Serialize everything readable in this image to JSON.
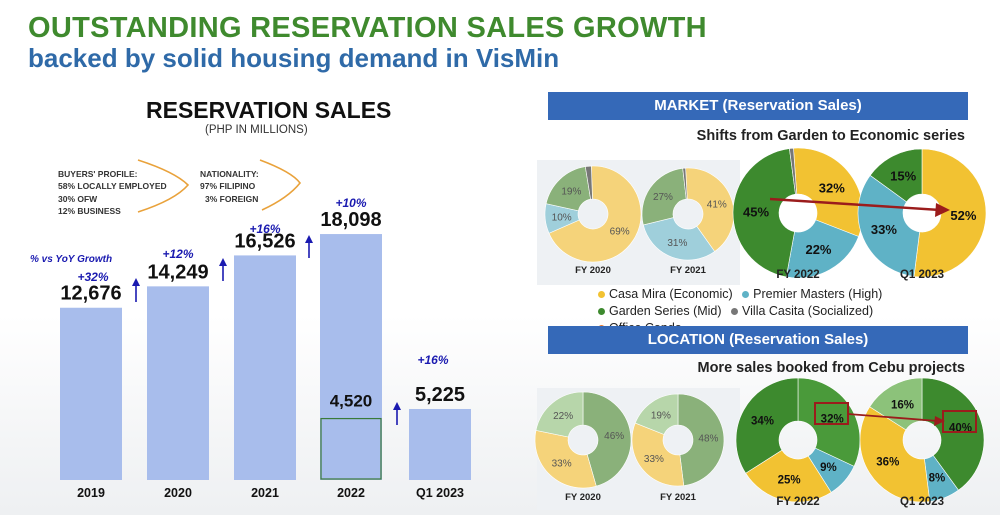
{
  "slide": {
    "title_line1": "OUTSTANDING RESERVATION SALES GROWTH",
    "title_line2": "backed by solid housing demand in VisMin"
  },
  "left_panel": {
    "buyers_profile": [
      "BUYERS' PROFILE:",
      "58%  LOCALLY EMPLOYED",
      "30%  OFW",
      "12%   BUSINESS"
    ],
    "nationality": [
      "NATIONALITY:",
      "97% FILIPINO",
      "3% FOREIGN"
    ],
    "yoy_note": "% vs YoY Growth"
  },
  "market_panel": {
    "header": "MARKET (Reservation Sales)",
    "subtitle": "Shifts from Garden to Economic series",
    "legend": [
      {
        "label": "Casa Mira (Economic)",
        "color": "#f2c232"
      },
      {
        "label": "Premier Masters (High)",
        "color": "#5fb2c6"
      },
      {
        "label": "Garden Series (Mid)",
        "color": "#3d8a2e"
      },
      {
        "label": "Villa Casita (Socialized)",
        "color": "#777777"
      },
      {
        "label": "Office Condo",
        "color": "#ea7a2c"
      }
    ]
  },
  "location_panel": {
    "header": "LOCATION (Reservation Sales)",
    "subtitle": "More sales booked from Cebu projects"
  },
  "chart_data": [
    {
      "type": "bar",
      "title": "RESERVATION SALES",
      "subtitle": "(PHP IN MILLIONS)",
      "categories": [
        "2019",
        "2020",
        "2021",
        "2022",
        "Q1 2023"
      ],
      "values": [
        12676,
        14249,
        16526,
        18098,
        5225
      ],
      "value_labels": [
        "12,676",
        "14,249",
        "16,526",
        "18,098",
        "5,225"
      ],
      "growth_labels": [
        "+32%",
        "+12%",
        "+16%",
        "+10%",
        "+16%"
      ],
      "highlight": {
        "category": "2022",
        "value": 4520,
        "label": "4,520"
      },
      "ylim": [
        0,
        19500
      ],
      "grid": false,
      "colors": {
        "bar": "#a8bdec",
        "highlight_fill": "#a8bdec",
        "highlight_edge": "#3a7a3a",
        "growth": "#1a1ab0"
      }
    },
    {
      "type": "pie",
      "title": "MARKET (Reservation Sales)",
      "charts": [
        {
          "label": "FY 2020",
          "slices": [
            {
              "series": "Casa Mira (Economic)",
              "value": 69,
              "text": "69%"
            },
            {
              "series": "Premier Masters (High)",
              "value": 10,
              "text": "10%"
            },
            {
              "series": "Garden Series (Mid)",
              "value": 19,
              "text": "19%"
            },
            {
              "series": "Villa Casita (Socialized)",
              "value": 2,
              "text": ""
            }
          ]
        },
        {
          "label": "FY 2021",
          "slices": [
            {
              "series": "Casa Mira (Economic)",
              "value": 41,
              "text": "41%"
            },
            {
              "series": "Premier Masters (High)",
              "value": 31,
              "text": "31%"
            },
            {
              "series": "Garden Series (Mid)",
              "value": 27,
              "text": "27%"
            },
            {
              "series": "Villa Casita (Socialized)",
              "value": 1,
              "text": ""
            }
          ]
        },
        {
          "label": "FY 2022",
          "slices": [
            {
              "series": "Casa Mira (Economic)",
              "value": 32,
              "text": "32%"
            },
            {
              "series": "Premier Masters (High)",
              "value": 22,
              "text": "22%"
            },
            {
              "series": "Garden Series (Mid)",
              "value": 45,
              "text": "45%"
            },
            {
              "series": "Villa Casita (Socialized)",
              "value": 1,
              "text": ""
            }
          ]
        },
        {
          "label": "Q1 2023",
          "slices": [
            {
              "series": "Casa Mira (Economic)",
              "value": 52,
              "text": "52%"
            },
            {
              "series": "Premier Masters (High)",
              "value": 33,
              "text": "33%"
            },
            {
              "series": "Garden Series (Mid)",
              "value": 15,
              "text": "15%"
            }
          ]
        }
      ]
    },
    {
      "type": "pie",
      "title": "LOCATION (Reservation Sales)",
      "charts": [
        {
          "label": "FY 2020",
          "slices": [
            {
              "value": 46,
              "text": "46%",
              "color": "#3d8a2e"
            },
            {
              "value": 33,
              "text": "33%",
              "color": "#f2c232"
            },
            {
              "value": 22,
              "text": "22%",
              "color": "#8cc27a"
            }
          ]
        },
        {
          "label": "FY 2021",
          "slices": [
            {
              "value": 48,
              "text": "48%",
              "color": "#3d8a2e"
            },
            {
              "value": 33,
              "text": "33%",
              "color": "#f2c232"
            },
            {
              "value": 19,
              "text": "19%",
              "color": "#8cc27a"
            }
          ]
        },
        {
          "label": "FY 2022",
          "slices": [
            {
              "value": 32,
              "text": "32%",
              "color": "#4a9a3a"
            },
            {
              "value": 9,
              "text": "9%",
              "color": "#5fb2c6"
            },
            {
              "value": 25,
              "text": "25%",
              "color": "#f2c232"
            },
            {
              "value": 34,
              "text": "34%",
              "color": "#3d8a2e"
            }
          ]
        },
        {
          "label": "Q1 2023",
          "slices": [
            {
              "value": 40,
              "text": "40%",
              "color": "#3d8a2e"
            },
            {
              "value": 8,
              "text": "8%",
              "color": "#5fb2c6"
            },
            {
              "value": 36,
              "text": "36%",
              "color": "#f2c232"
            },
            {
              "value": 16,
              "text": "16%",
              "color": "#8cc27a"
            }
          ]
        }
      ]
    }
  ]
}
